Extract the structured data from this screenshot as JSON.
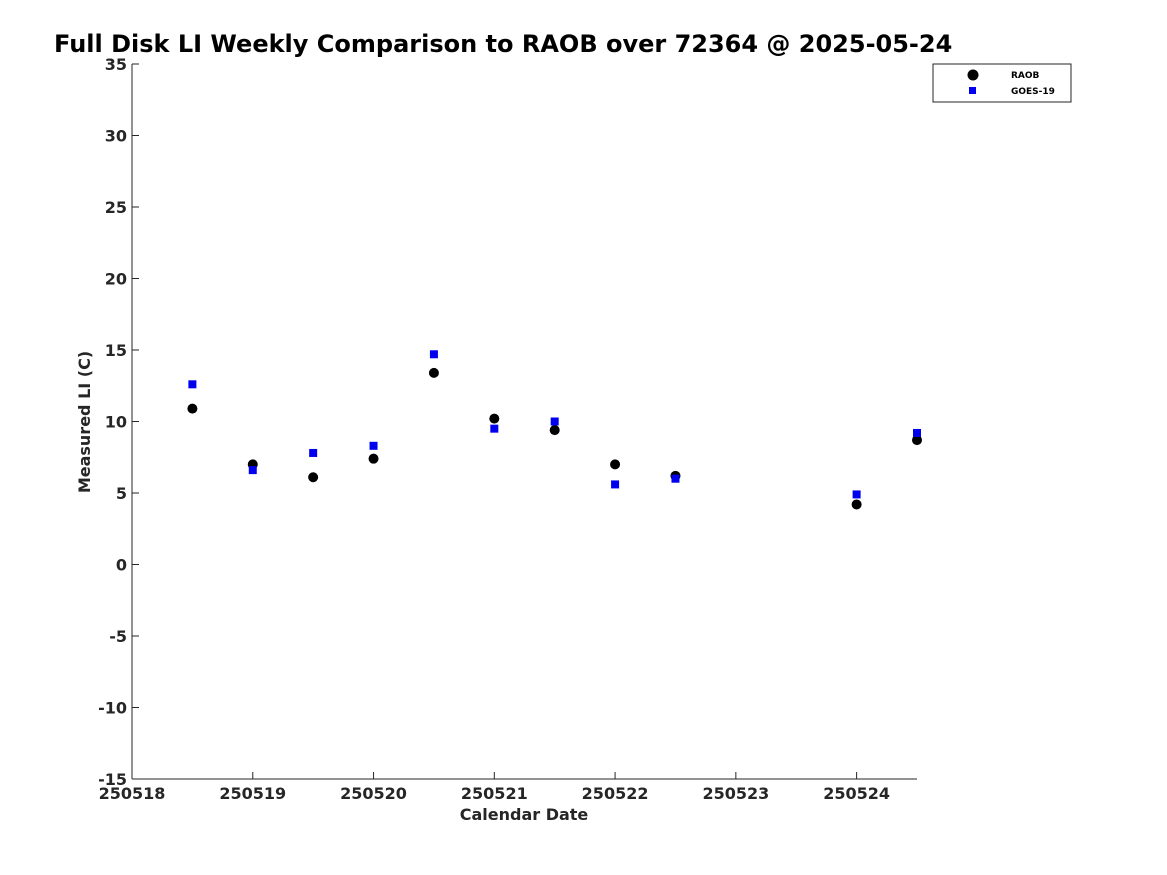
{
  "chart_data": {
    "type": "scatter",
    "title": "Full Disk LI Weekly Comparison to RAOB over 72364 @ 2025-05-24",
    "xlabel": "Calendar Date",
    "ylabel": "Measured LI (C)",
    "xlim": [
      0,
      6.5
    ],
    "ylim": [
      -15,
      35
    ],
    "xticks": [
      {
        "value": 0,
        "label": "250518"
      },
      {
        "value": 1,
        "label": "250519"
      },
      {
        "value": 2,
        "label": "250520"
      },
      {
        "value": 3,
        "label": "250521"
      },
      {
        "value": 4,
        "label": "250522"
      },
      {
        "value": 5,
        "label": "250523"
      },
      {
        "value": 6,
        "label": "250524"
      }
    ],
    "yticks": [
      {
        "value": 35,
        "label": "35"
      },
      {
        "value": 30,
        "label": "30"
      },
      {
        "value": 25,
        "label": "25"
      },
      {
        "value": 20,
        "label": "20"
      },
      {
        "value": 15,
        "label": "15"
      },
      {
        "value": 10,
        "label": "10"
      },
      {
        "value": 5,
        "label": "5"
      },
      {
        "value": 0,
        "label": "0"
      },
      {
        "value": -5,
        "label": "-5"
      },
      {
        "value": -10,
        "label": "-10"
      },
      {
        "value": -15,
        "label": "-15"
      }
    ],
    "grid": false,
    "legend_position": "top-right",
    "series": [
      {
        "name": "RAOB",
        "marker": "circle",
        "color": "#000000",
        "x": [
          0.5,
          1.0,
          1.5,
          2.0,
          2.5,
          3.0,
          3.5,
          4.0,
          4.5,
          6.0,
          6.5
        ],
        "y": [
          10.9,
          7.0,
          6.1,
          7.4,
          13.4,
          10.2,
          9.4,
          7.0,
          6.2,
          4.2,
          8.7
        ]
      },
      {
        "name": "GOES-19",
        "marker": "square",
        "color": "#0000ee",
        "x": [
          0.5,
          1.0,
          1.5,
          2.0,
          2.5,
          3.0,
          3.5,
          4.0,
          4.5,
          6.0,
          6.5
        ],
        "y": [
          12.6,
          6.6,
          7.8,
          8.3,
          14.7,
          9.5,
          10.0,
          5.6,
          6.0,
          4.9,
          9.2
        ]
      }
    ]
  }
}
